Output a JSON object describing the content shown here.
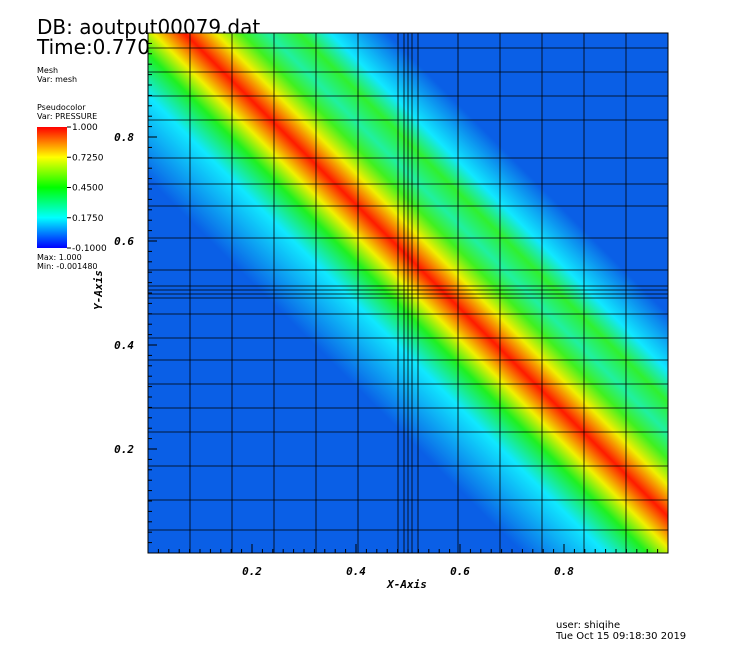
{
  "chart_data": {
    "type": "pseudocolor",
    "db_title": "DB: aoutput00079.dat",
    "time_label": "Time:0.7702",
    "mesh_plot": {
      "name": "Mesh",
      "var": "Var: mesh"
    },
    "pseudocolor_plot": {
      "name": "Pseudocolor",
      "var": "Var: PRESSURE",
      "clim": [
        -0.1,
        1.0
      ],
      "cticks": [
        {
          "value": 1.0,
          "label": "1.000"
        },
        {
          "value": 0.725,
          "label": "0.7250"
        },
        {
          "value": 0.45,
          "label": "0.4500"
        },
        {
          "value": 0.175,
          "label": "0.1750"
        },
        {
          "value": -0.1,
          "label": "-0.1000"
        }
      ],
      "max_label": "Max:  1.000",
      "min_label": "Min: -0.001480"
    },
    "x_label": "X-Axis",
    "y_label": "Y-Axis",
    "xlim": [
      0,
      1
    ],
    "ylim": [
      0,
      1
    ],
    "xticks": [
      0.2,
      0.4,
      0.6,
      0.8
    ],
    "yticks": [
      0.2,
      0.4,
      0.6,
      0.8
    ],
    "user": "user: shiqihe",
    "date": "Tue Oct 15 09:18:30 2019"
  }
}
